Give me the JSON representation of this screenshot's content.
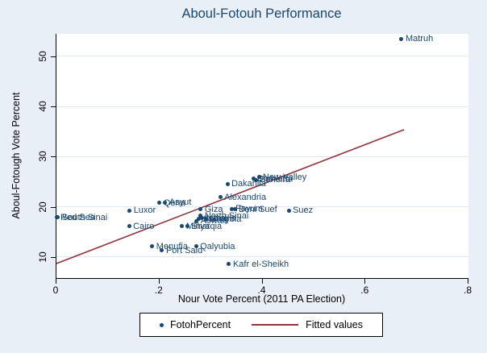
{
  "colors": {
    "navy": "#1a476f",
    "maroon": "#90353b",
    "canvas_bg": "#e8eff7",
    "plot_bg": "#ffffff",
    "grid": "#dfe9f3"
  },
  "chart_data": {
    "type": "scatter",
    "title": "Aboul-Fotouh Performance",
    "xlabel": "Nour Vote Percent (2011 PA Election)",
    "ylabel": "Aboul-Fotough Vote Percent",
    "xlim": [
      0,
      0.8
    ],
    "ylim_visible": [
      5.8,
      54.5
    ],
    "xticks": [
      0,
      0.2,
      0.4,
      0.6,
      0.8
    ],
    "xtick_labels": [
      "0",
      ".2",
      ".4",
      ".6",
      ".8"
    ],
    "yticks": [
      10,
      20,
      30,
      40,
      50
    ],
    "ytick_labels": [
      "10",
      "20",
      "30",
      "40",
      "50"
    ],
    "grid": true,
    "legend_position": "bottom-center",
    "series": [
      {
        "name": "FotohPercent",
        "type": "scatter",
        "marker": "circle",
        "label_position": "right",
        "points": [
          {
            "label": "Matruh",
            "x": 0.67,
            "y": 53.5
          },
          {
            "label": "Red Sea",
            "x": 0.0,
            "y": 17.9
          },
          {
            "label": "South Sinai",
            "x": 0.003,
            "y": 17.9
          },
          {
            "label": "Luxor",
            "x": 0.142,
            "y": 19.3
          },
          {
            "label": "Cairo",
            "x": 0.141,
            "y": 16.1
          },
          {
            "label": "Qena",
            "x": 0.2,
            "y": 20.8
          },
          {
            "label": "Asyut",
            "x": 0.211,
            "y": 20.9
          },
          {
            "label": "Alexandria",
            "x": 0.318,
            "y": 21.9
          },
          {
            "label": "Dakahlia",
            "x": 0.332,
            "y": 24.6
          },
          {
            "label": "Damietta",
            "x": 0.382,
            "y": 25.6
          },
          {
            "label": "Beheira",
            "x": 0.387,
            "y": 25.4
          },
          {
            "label": "New Valley",
            "x": 0.393,
            "y": 25.9
          },
          {
            "label": "Giza",
            "x": 0.28,
            "y": 19.5
          },
          {
            "label": "Fayum",
            "x": 0.34,
            "y": 19.6
          },
          {
            "label": "Beni Suef",
            "x": 0.346,
            "y": 19.5
          },
          {
            "label": "North Sinai",
            "x": 0.28,
            "y": 18.2
          },
          {
            "label": "Suez",
            "x": 0.451,
            "y": 19.3
          },
          {
            "label": "Aswan",
            "x": 0.272,
            "y": 17.2
          },
          {
            "label": "Sohag",
            "x": 0.277,
            "y": 17.6
          },
          {
            "label": "Ismailia",
            "x": 0.283,
            "y": 17.7
          },
          {
            "label": "Gharbia",
            "x": 0.29,
            "y": 17.6
          },
          {
            "label": "Minya",
            "x": 0.244,
            "y": 16.1
          },
          {
            "label": "Sharqia",
            "x": 0.254,
            "y": 16.1
          },
          {
            "label": "Menufia",
            "x": 0.186,
            "y": 12.1
          },
          {
            "label": "Qalyubia",
            "x": 0.271,
            "y": 12.1
          },
          {
            "label": "Port Said",
            "x": 0.205,
            "y": 11.3
          },
          {
            "label": "Kafr el-Sheikh",
            "x": 0.335,
            "y": 8.6
          }
        ]
      },
      {
        "name": "Fitted values",
        "type": "line",
        "x": [
          0,
          0.675
        ],
        "y": [
          8.7,
          35.4
        ]
      }
    ]
  }
}
